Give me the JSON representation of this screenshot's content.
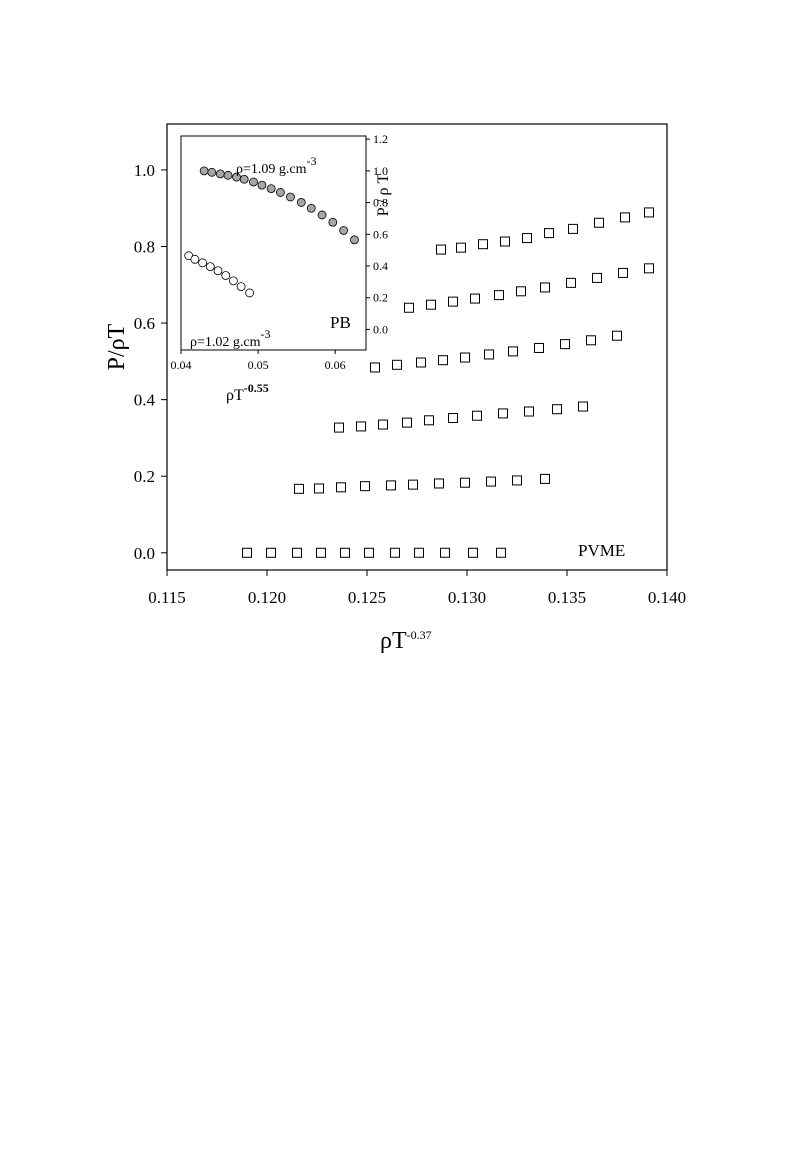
{
  "chart_data": [
    {
      "type": "scatter",
      "xlabel": "ρT",
      "xlabel_exp": "-0.37",
      "ylabel": "P/ρT",
      "xlim": [
        0.115,
        0.14
      ],
      "ylim": [
        -0.045,
        1.12
      ],
      "xticks": [
        "0.115",
        "0.120",
        "0.125",
        "0.130",
        "0.135",
        "0.140"
      ],
      "yticks": [
        "0.0",
        "0.2",
        "0.4",
        "0.6",
        "0.8",
        "1.0"
      ],
      "annotation": "PVME",
      "marker": "open-square",
      "series": [
        {
          "x": [
            0.119,
            0.1202,
            0.1215,
            0.1227,
            0.1239,
            0.1251,
            0.1264,
            0.1276,
            0.1289,
            0.1303,
            0.1317
          ],
          "y": [
            0.0,
            0.0,
            0.0,
            0.0,
            0.0,
            0.0,
            0.0,
            0.0,
            0.0,
            0.0,
            0.0
          ]
        },
        {
          "x": [
            0.1216,
            0.1226,
            0.1237,
            0.1249,
            0.1262,
            0.1273,
            0.1286,
            0.1299,
            0.1312,
            0.1325,
            0.1339
          ],
          "y": [
            0.167,
            0.168,
            0.171,
            0.174,
            0.176,
            0.178,
            0.181,
            0.183,
            0.186,
            0.189,
            0.193
          ]
        },
        {
          "x": [
            0.1236,
            0.1247,
            0.1258,
            0.127,
            0.1281,
            0.1293,
            0.1305,
            0.1318,
            0.1331,
            0.1345,
            0.1358
          ],
          "y": [
            0.327,
            0.33,
            0.335,
            0.34,
            0.346,
            0.352,
            0.358,
            0.364,
            0.369,
            0.375,
            0.382
          ]
        },
        {
          "x": [
            0.1254,
            0.1265,
            0.1277,
            0.1288,
            0.1299,
            0.1311,
            0.1323,
            0.1336,
            0.1349,
            0.1362,
            0.1375
          ],
          "y": [
            0.484,
            0.491,
            0.497,
            0.503,
            0.51,
            0.518,
            0.526,
            0.535,
            0.545,
            0.555,
            0.567
          ]
        },
        {
          "x": [
            0.1271,
            0.1282,
            0.1293,
            0.1304,
            0.1316,
            0.1327,
            0.1339,
            0.1352,
            0.1365,
            0.1378,
            0.1391
          ],
          "y": [
            0.64,
            0.648,
            0.656,
            0.664,
            0.673,
            0.683,
            0.693,
            0.705,
            0.718,
            0.731,
            0.743
          ]
        },
        {
          "x": [
            0.1287,
            0.1297,
            0.1308,
            0.1319,
            0.133,
            0.1341,
            0.1353,
            0.1366,
            0.1379,
            0.1391
          ],
          "y": [
            0.792,
            0.797,
            0.806,
            0.813,
            0.822,
            0.835,
            0.846,
            0.862,
            0.876,
            0.889
          ]
        }
      ]
    },
    {
      "type": "scatter",
      "inset": true,
      "xlabel": "ρT",
      "xlabel_exp": "-0.55",
      "ylabel": "P / ρ T",
      "xlim": [
        0.04,
        0.064
      ],
      "ylim": [
        -0.13,
        1.22
      ],
      "xticks": [
        "0.04",
        "0.05",
        "0.06"
      ],
      "yticks": [
        "0.0",
        "0.2",
        "0.4",
        "0.6",
        "0.8",
        "1.0",
        "1.2"
      ],
      "annotation": "PB",
      "series": [
        {
          "label": "ρ=1.09 g.cm",
          "label_exp": "-3",
          "marker": "filled-circle",
          "fill": "#a6a6a6",
          "x": [
            0.043,
            0.044,
            0.0451,
            0.0461,
            0.0472,
            0.0482,
            0.0494,
            0.0505,
            0.0517,
            0.0529,
            0.0542,
            0.0556,
            0.0569,
            0.0583,
            0.0597,
            0.0611,
            0.0625
          ],
          "y": [
            1.0,
            0.991,
            0.981,
            0.972,
            0.961,
            0.947,
            0.93,
            0.91,
            0.888,
            0.864,
            0.835,
            0.801,
            0.764,
            0.722,
            0.676,
            0.624,
            0.565
          ]
        },
        {
          "label": "ρ=1.02 g.cm",
          "label_exp": "-3",
          "marker": "open-circle",
          "fill": "#ffffff",
          "x": [
            0.041,
            0.0418,
            0.0428,
            0.0438,
            0.0448,
            0.0458,
            0.0468,
            0.0478,
            0.0489
          ],
          "y": [
            0.465,
            0.442,
            0.42,
            0.396,
            0.37,
            0.34,
            0.306,
            0.27,
            0.23
          ]
        }
      ]
    }
  ]
}
